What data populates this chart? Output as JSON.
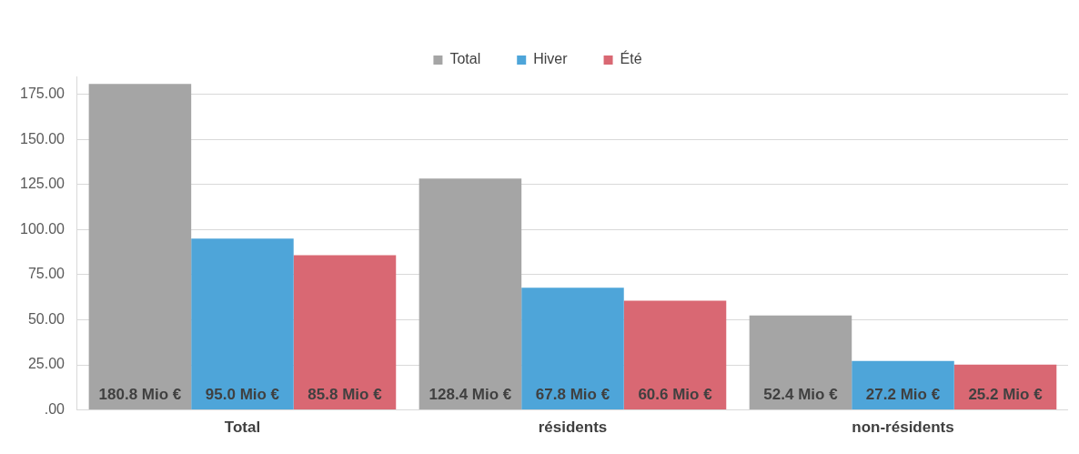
{
  "chart_data": {
    "type": "bar",
    "categories": [
      "Total",
      "résidents",
      "non-résidents"
    ],
    "series": [
      {
        "name": "Total",
        "color": "#a5a5a5",
        "values": [
          180.8,
          128.4,
          52.4
        ],
        "value_labels": [
          "180.8 Mio €",
          "128.4 Mio €",
          "52.4 Mio €"
        ]
      },
      {
        "name": "Hiver",
        "color": "#4ea5d9",
        "values": [
          95.0,
          67.8,
          27.2
        ],
        "value_labels": [
          "95.0 Mio €",
          "67.8 Mio €",
          "27.2 Mio €"
        ]
      },
      {
        "name": "Été",
        "color": "#d96873",
        "values": [
          85.8,
          60.6,
          25.2
        ],
        "value_labels": [
          "85.8 Mio €",
          "60.6 Mio €",
          "25.2 Mio €"
        ]
      }
    ],
    "ylim": [
      0,
      185
    ],
    "yticks": [
      {
        "value": 0,
        "label": ".00"
      },
      {
        "value": 25,
        "label": "25.00"
      },
      {
        "value": 50,
        "label": "50.00"
      },
      {
        "value": 75,
        "label": "75.00"
      },
      {
        "value": 100,
        "label": "100.00"
      },
      {
        "value": 125,
        "label": "125.00"
      },
      {
        "value": 150,
        "label": "150.00"
      },
      {
        "value": 175,
        "label": "175.00"
      }
    ],
    "grid": "y",
    "legend": "top"
  }
}
